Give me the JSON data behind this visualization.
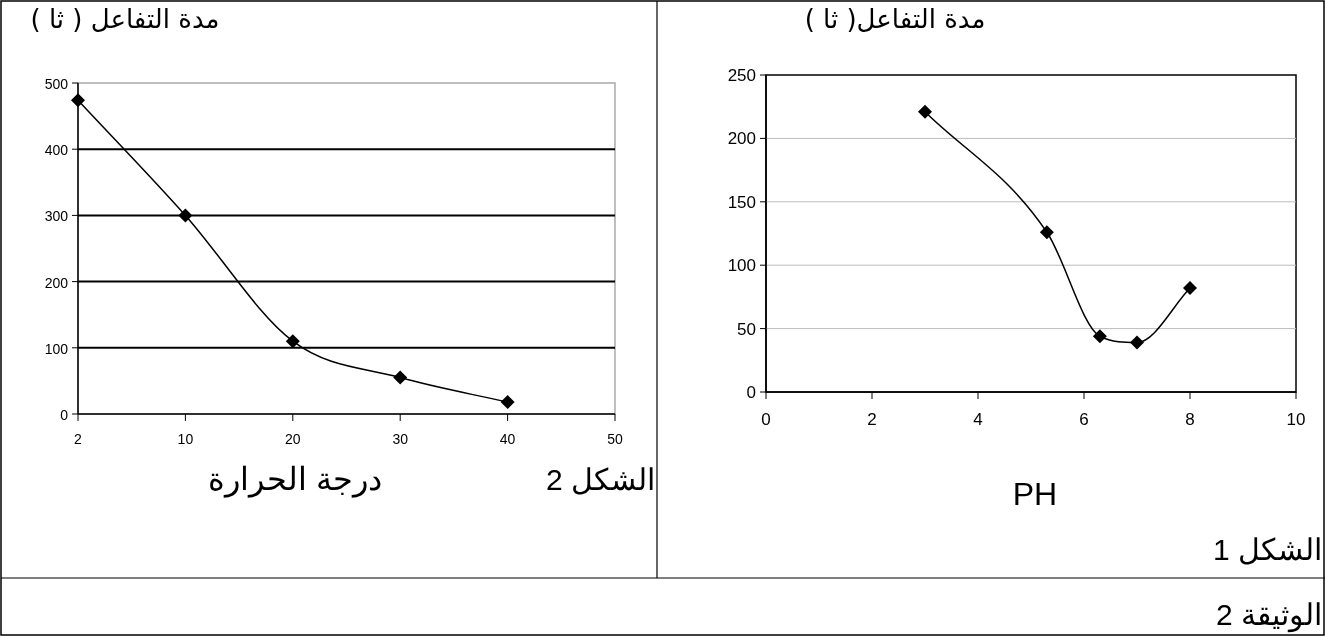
{
  "chart_data": [
    {
      "type": "line",
      "ylabel": "مدة التفاعل ( ثا )",
      "xlabel": "درجة الحرارة",
      "annotations": [
        "الشكل 2"
      ],
      "categories": [
        "2",
        "10",
        "20",
        "30",
        "40",
        "50"
      ],
      "series": [
        {
          "color": "#000000",
          "values": [
            474,
            300,
            110,
            55,
            18,
            null
          ]
        }
      ],
      "ylim": [
        0,
        500
      ],
      "yticks": [
        0,
        100,
        200,
        300,
        400,
        500
      ],
      "grid": "y",
      "marker": "diamond"
    },
    {
      "type": "line",
      "ylabel": "مدة التفاعل( ثا )",
      "xlabel": "PH",
      "annotations": [
        "الشكل 1",
        "الوثيقة 2"
      ],
      "series": [
        {
          "color": "#000000",
          "x": [
            3,
            5.3,
            6.3,
            7,
            8
          ],
          "values": [
            221,
            126,
            44,
            39,
            82
          ]
        }
      ],
      "xlim": [
        0,
        10
      ],
      "xticks": [
        0,
        2,
        4,
        6,
        8,
        10
      ],
      "ylim": [
        0,
        250
      ],
      "yticks": [
        0,
        50,
        100,
        150,
        200,
        250
      ],
      "grid": "y",
      "marker": "diamond"
    }
  ]
}
